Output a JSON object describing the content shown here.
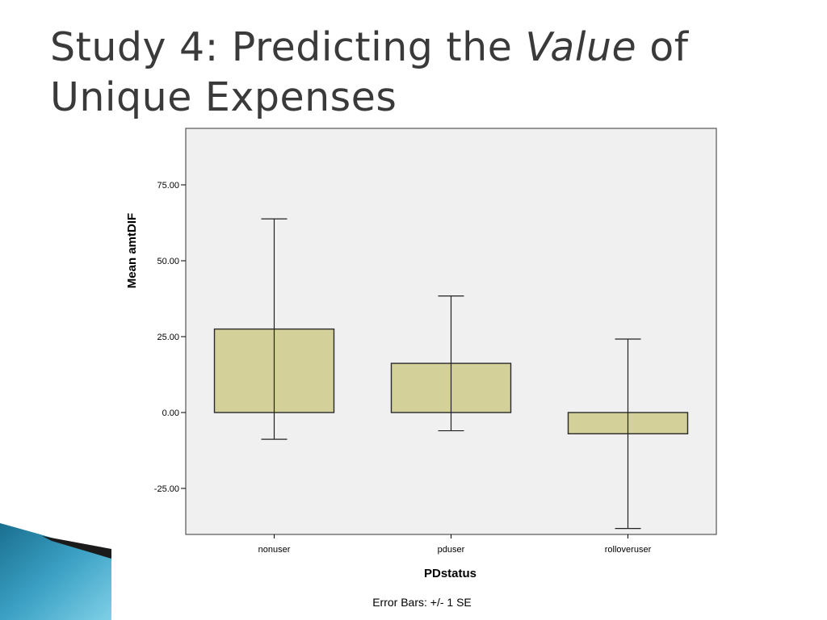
{
  "slide": {
    "title_part1": "Study 4: Predicting the ",
    "title_emphasis": "Value",
    "title_part2": " of",
    "title_line2": "Unique Expenses"
  },
  "colors": {
    "plot_bg": "#f0f0f0",
    "bar_fill": "#d4d09a",
    "bar_stroke": "#2a2a2a",
    "title_text": "#3a3a3a"
  },
  "chart_data": {
    "type": "bar",
    "categories": [
      "nonuser",
      "pduser",
      "rolloveruser"
    ],
    "values": [
      27.5,
      16.2,
      -7.0
    ],
    "error_low": [
      -8.8,
      -6.0,
      -38.2
    ],
    "error_high": [
      63.8,
      38.4,
      24.2
    ],
    "xlabel": "PDstatus",
    "ylabel": "Mean amtDIF",
    "ylim": [
      -40,
      94
    ],
    "yticks": [
      75,
      50,
      25,
      0,
      -25
    ],
    "ytick_labels": [
      "75.00",
      "50.00",
      "25.00",
      "0.00",
      "-25.00"
    ],
    "footnote": "Error Bars: +/- 1 SE",
    "grid": false
  }
}
